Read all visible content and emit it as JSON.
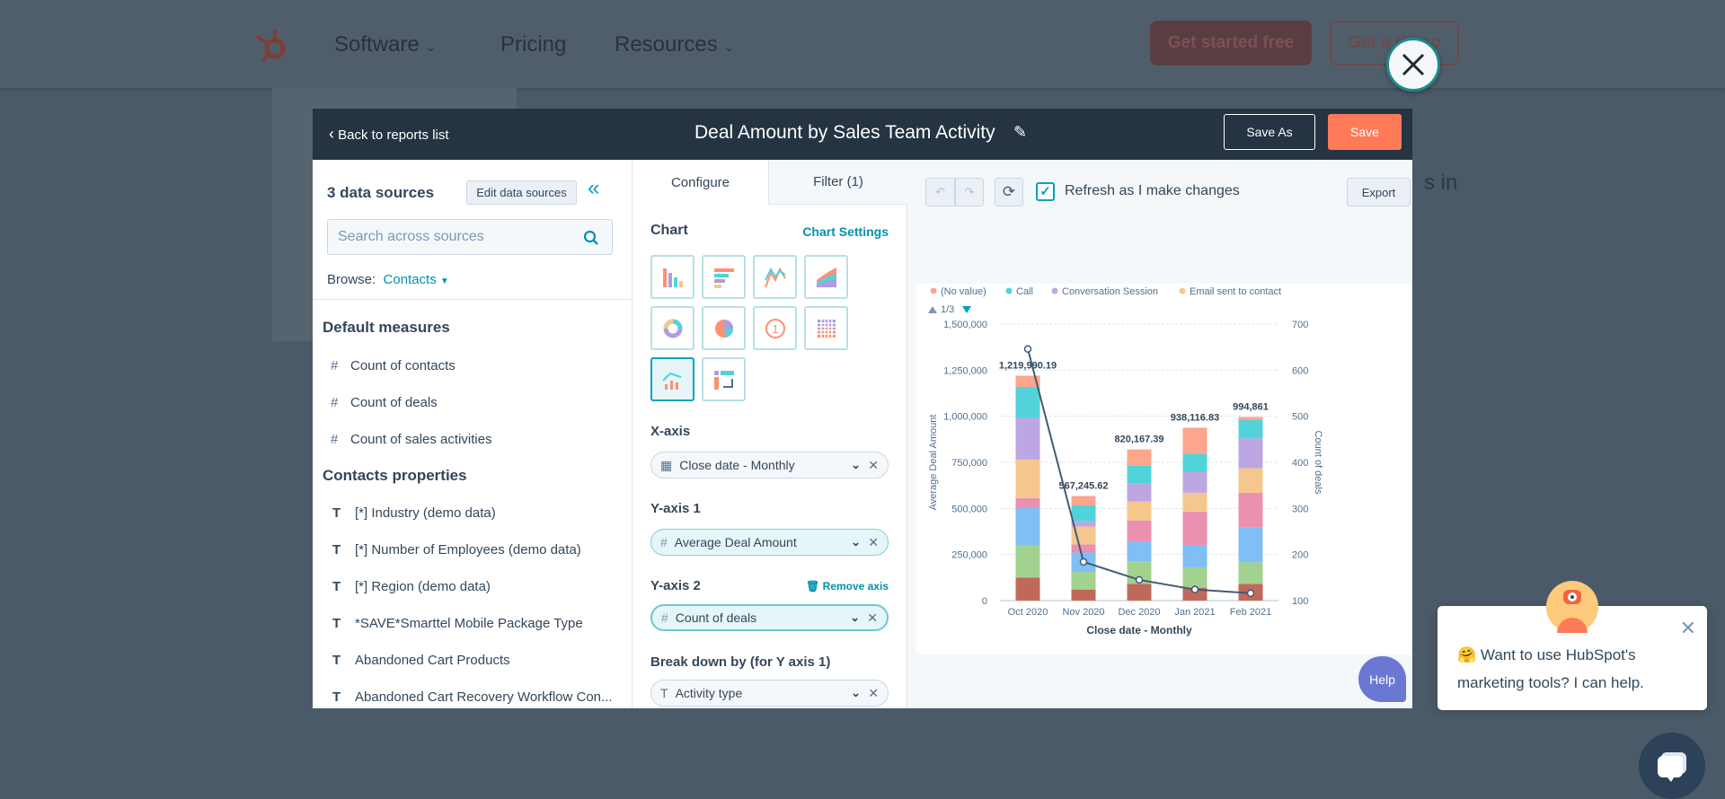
{
  "nav": {
    "items": [
      "Software",
      "Pricing",
      "Resources"
    ],
    "cta_primary": "Get started free",
    "cta_secondary": "Get a demo",
    "bg_fragment": "s in"
  },
  "modal": {
    "back": "Back to reports list",
    "title": "Deal Amount by Sales Team Activity",
    "save_as": "Save As",
    "save": "Save",
    "left": {
      "sources": "3 data sources",
      "edit": "Edit data sources",
      "search_placeholder": "Search across sources",
      "browse_label": "Browse:",
      "browse_value": "Contacts",
      "default_measures": "Default measures",
      "measures": [
        "Count of contacts",
        "Count of deals",
        "Count of sales activities"
      ],
      "contacts_properties": "Contacts properties",
      "properties": [
        "[*] Industry (demo data)",
        "[*] Number of Employees (demo data)",
        "[*] Region (demo data)",
        "*SAVE*Smarttel Mobile Package Type",
        "Abandoned Cart Products",
        "Abandoned Cart Recovery Workflow Con..."
      ]
    },
    "mid": {
      "tab_configure": "Configure",
      "tab_filter": "Filter (1)",
      "chart": "Chart",
      "chart_settings": "Chart Settings",
      "xaxis": "X-axis",
      "xaxis_value": "Close date - Monthly",
      "yaxis1": "Y-axis 1",
      "yaxis1_value": "Average Deal Amount",
      "yaxis2": "Y-axis 2",
      "remove_axis": "Remove axis",
      "yaxis2_value": "Count of deals",
      "breakdown": "Break down by (for Y axis 1)",
      "breakdown_value": "Activity type"
    },
    "right": {
      "refresh": "Refresh as I make changes",
      "refresh_checked": true,
      "export": "Export"
    }
  },
  "chart_data": {
    "type": "bar",
    "categories": [
      "Oct 2020",
      "Nov 2020",
      "Dec 2020",
      "Jan 2021",
      "Feb 2021"
    ],
    "xlabel": "Close date - Monthly",
    "ylabel": "Average Deal Amount",
    "y2label": "Count of deals",
    "ylim": [
      0,
      1500000
    ],
    "yticks": [
      "0",
      "250,000",
      "500,000",
      "750,000",
      "1,000,000",
      "1,250,000",
      "1,500,000"
    ],
    "y2lim": [
      100,
      700
    ],
    "y2ticks": [
      "100",
      "200",
      "300",
      "400",
      "500",
      "600",
      "700"
    ],
    "legend": [
      {
        "name": "(No value)",
        "color": "#fea58e"
      },
      {
        "name": "Call",
        "color": "#51d3d9"
      },
      {
        "name": "Conversation Session",
        "color": "#bda7e3"
      },
      {
        "name": "Email sent to contact",
        "color": "#f5c78e"
      }
    ],
    "legend_page": "1/3",
    "legend_placement": "top-left",
    "grid": true,
    "stack_colors": [
      "#c0695a",
      "#a2d28f",
      "#7fbff5",
      "#ea90b1",
      "#f5c78e",
      "#bda7e3",
      "#51d3d9",
      "#fea58e"
    ],
    "stacks": [
      [
        125000,
        177000,
        202000,
        51000,
        210000,
        226000,
        168000,
        61000
      ],
      [
        60000,
        96000,
        105000,
        44000,
        97000,
        28000,
        86000,
        51000
      ],
      [
        91000,
        123000,
        107000,
        114000,
        103000,
        96000,
        97000,
        89000
      ],
      [
        70000,
        110000,
        122000,
        181000,
        102000,
        114000,
        97000,
        142000
      ],
      [
        91000,
        117000,
        188000,
        189000,
        133000,
        162000,
        101000,
        15000
      ]
    ],
    "totals_labels": [
      "1,219,990.19",
      "567,245.62",
      "820,167.39",
      "938,116.83",
      "994,861"
    ],
    "line": {
      "name": "Count of deals",
      "axis": "right",
      "values": [
        646,
        184,
        145,
        124,
        116
      ],
      "color": "#425b76"
    }
  },
  "help": "Help",
  "chat": {
    "message": "Want to use HubSpot's marketing tools? I can help."
  }
}
